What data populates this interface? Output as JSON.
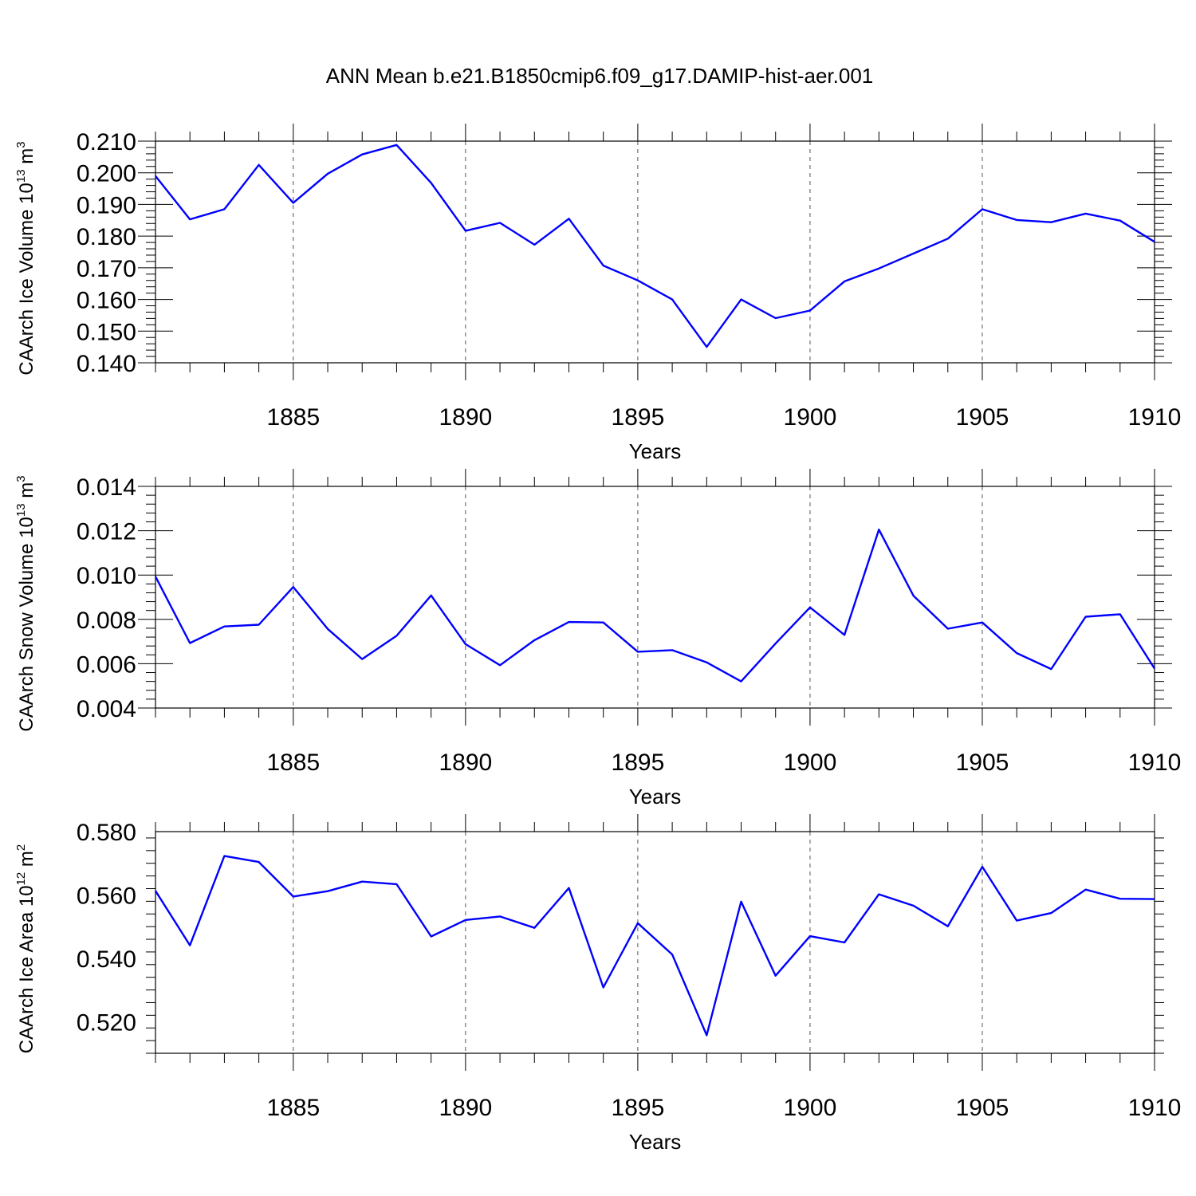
{
  "title": "ANN Mean b.e21.B1850cmip6.f09_g17.DAMIP-hist-aer.001",
  "colors": {
    "series": "#0000ff",
    "axis": "#000000",
    "grid": "#555555"
  },
  "chart_data": [
    {
      "type": "line",
      "xlabel": "Years",
      "ylabel": {
        "text": "CAArch Ice Volume 10",
        "sup": "13",
        "unit": " m",
        "unit_sup": "3"
      },
      "x": [
        1881,
        1882,
        1883,
        1884,
        1885,
        1886,
        1887,
        1888,
        1889,
        1890,
        1891,
        1892,
        1893,
        1894,
        1895,
        1896,
        1897,
        1898,
        1899,
        1900,
        1901,
        1902,
        1903,
        1904,
        1905,
        1906,
        1907,
        1908,
        1909,
        1910
      ],
      "values": [
        0.199,
        0.1853,
        0.1885,
        0.2025,
        0.1905,
        0.1997,
        0.2058,
        0.2088,
        0.1968,
        0.1817,
        0.1842,
        0.1773,
        0.1855,
        0.1707,
        0.166,
        0.16,
        0.145,
        0.16,
        0.1541,
        0.1565,
        0.1657,
        0.1698,
        0.1745,
        0.1792,
        0.1885,
        0.1851,
        0.1844,
        0.1871,
        0.1849,
        0.1782
      ],
      "xlim": [
        1881,
        1910
      ],
      "ylim": [
        0.14,
        0.21
      ],
      "xticks": [
        "1885",
        "1890",
        "1895",
        "1900",
        "1905",
        "1910"
      ],
      "yticks": [
        "0.140",
        "0.150",
        "0.160",
        "0.170",
        "0.180",
        "0.190",
        "0.200",
        "0.210"
      ]
    },
    {
      "type": "line",
      "xlabel": "Years",
      "ylabel": {
        "text": "CAArch Snow Volume 10",
        "sup": "13",
        "unit": " m",
        "unit_sup": "3"
      },
      "x": [
        1881,
        1882,
        1883,
        1884,
        1885,
        1886,
        1887,
        1888,
        1889,
        1890,
        1891,
        1892,
        1893,
        1894,
        1895,
        1896,
        1897,
        1898,
        1899,
        1900,
        1901,
        1902,
        1903,
        1904,
        1905,
        1906,
        1907,
        1908,
        1909,
        1910
      ],
      "values": [
        0.00993,
        0.00693,
        0.00768,
        0.00776,
        0.00946,
        0.00757,
        0.00621,
        0.00726,
        0.00908,
        0.00688,
        0.00593,
        0.00706,
        0.00788,
        0.00786,
        0.00654,
        0.00661,
        0.00606,
        0.0052,
        0.00691,
        0.00854,
        0.0073,
        0.01205,
        0.00907,
        0.00758,
        0.00786,
        0.00648,
        0.00576,
        0.00812,
        0.00823,
        0.00578
      ],
      "xlim": [
        1881,
        1910
      ],
      "ylim": [
        0.004,
        0.014
      ],
      "xticks": [
        "1885",
        "1890",
        "1895",
        "1900",
        "1905",
        "1910"
      ],
      "yticks": [
        "0.004",
        "0.006",
        "0.008",
        "0.010",
        "0.012",
        "0.014"
      ]
    },
    {
      "type": "line",
      "xlabel": "Years",
      "ylabel": {
        "text": "CAArch Ice Area 10",
        "sup": "12",
        "unit": " m",
        "unit_sup": "2"
      },
      "x": [
        1881,
        1882,
        1883,
        1884,
        1885,
        1886,
        1887,
        1888,
        1889,
        1890,
        1891,
        1892,
        1893,
        1894,
        1895,
        1896,
        1897,
        1898,
        1899,
        1900,
        1901,
        1902,
        1903,
        1904,
        1905,
        1906,
        1907,
        1908,
        1909,
        1910
      ],
      "values": [
        0.5613,
        0.5441,
        0.5723,
        0.5704,
        0.5595,
        0.5612,
        0.5642,
        0.5634,
        0.5469,
        0.5521,
        0.5532,
        0.5496,
        0.5622,
        0.5308,
        0.5511,
        0.5412,
        0.5157,
        0.5579,
        0.5345,
        0.547,
        0.545,
        0.5602,
        0.5566,
        0.5501,
        0.5689,
        0.5519,
        0.5543,
        0.5617,
        0.5588,
        0.5587
      ],
      "xlim": [
        1881,
        1910
      ],
      "ylim": [
        0.51,
        0.58
      ],
      "xticks": [
        "1885",
        "1890",
        "1895",
        "1900",
        "1905",
        "1910"
      ],
      "yticks": [
        "0.520",
        "0.540",
        "0.560",
        "0.580"
      ]
    }
  ]
}
